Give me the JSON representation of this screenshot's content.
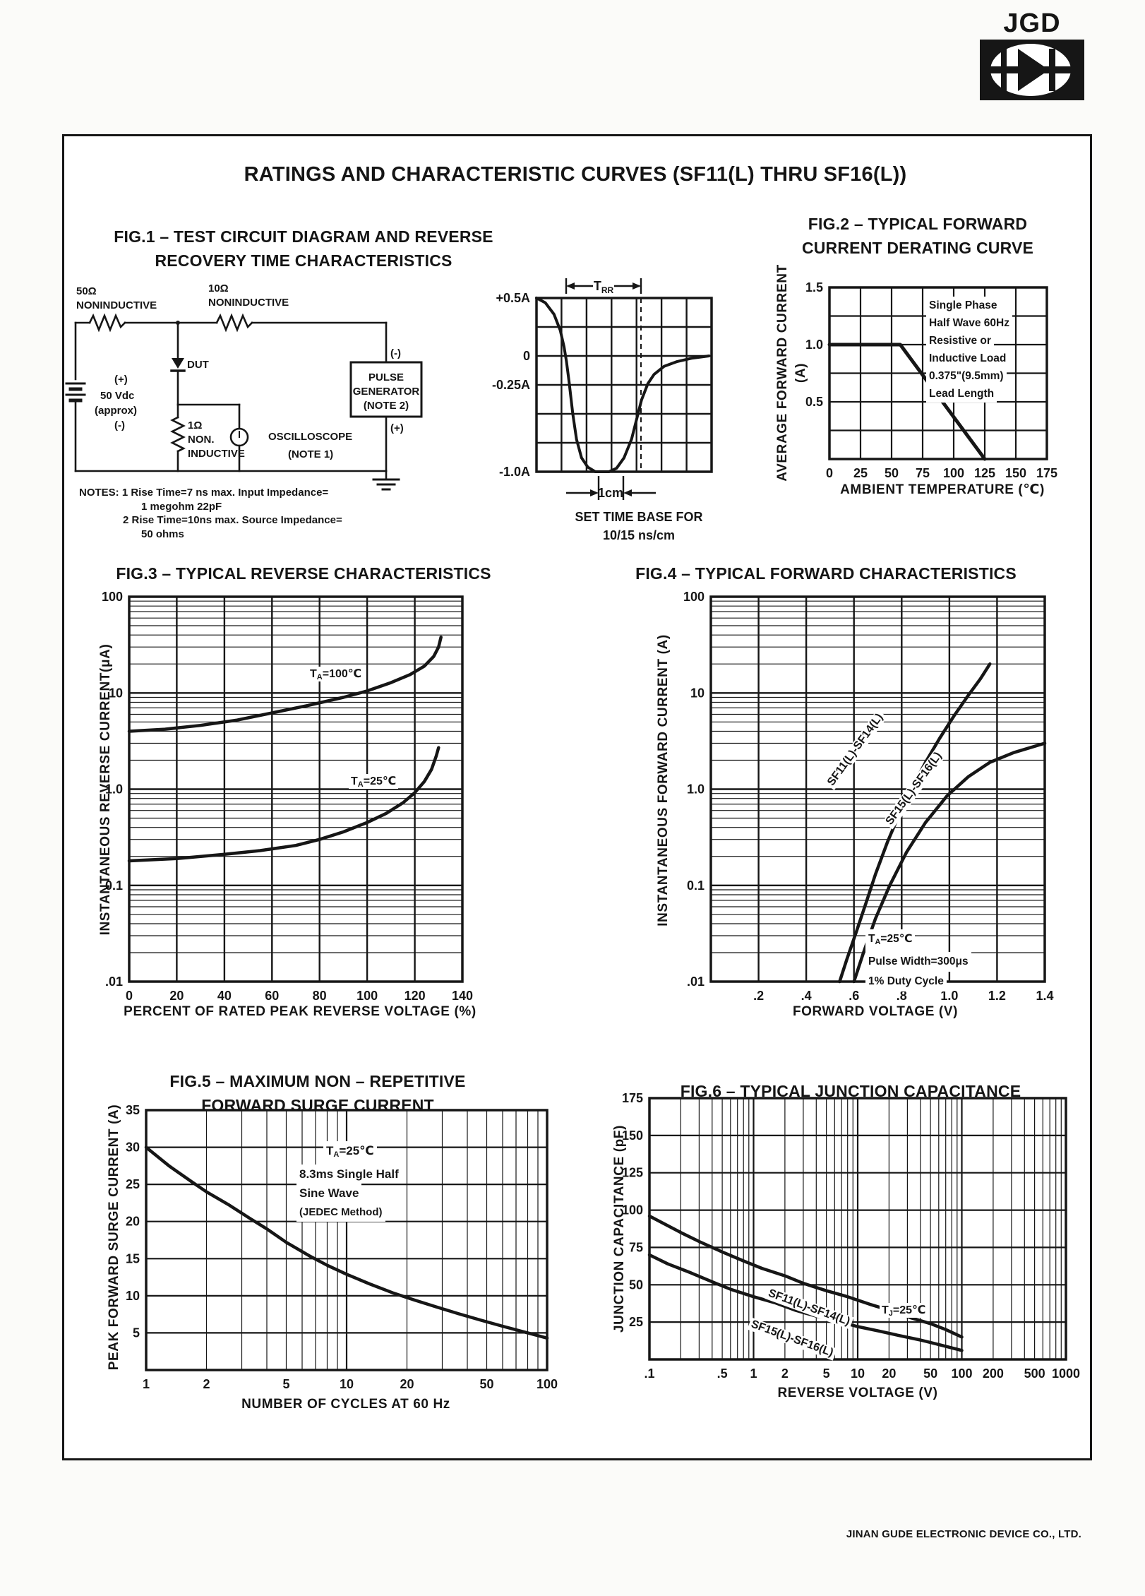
{
  "logo_text": "JGD",
  "page_title": "RATINGS AND CHARACTERISTIC CURVES (SF11(L) THRU SF16(L))",
  "footer_text": "JINAN GUDE ELECTRONIC DEVICE CO., LTD.",
  "fig1": {
    "title_line1": "FIG.1 – TEST CIRCUIT DIAGRAM AND REVERSE",
    "title_line2": "RECOVERY TIME CHARACTERISTICS",
    "circuit": {
      "r1_value": "50Ω",
      "r1_type": "NONINDUCTIVE",
      "r2_value": "10Ω",
      "r2_type": "NONINDUCTIVE",
      "dut_label": "DUT",
      "battery_plus": "(+)",
      "battery_voltage": "50 Vdc",
      "battery_approx": "(approx)",
      "battery_minus": "(-)",
      "r3_value": "1Ω",
      "r3_line1": "NON.",
      "r3_line2": "INDUCTIVE",
      "scope_label": "OSCILLOSCOPE",
      "scope_note": "(NOTE 1)",
      "pulse_line1": "PULSE",
      "pulse_line2": "GENERATOR",
      "pulse_line3": "(NOTE 2)",
      "pg_minus": "(-)",
      "pg_plus": "(+)"
    },
    "notes": {
      "line1": "NOTES: 1 Rise Time=7 ns max. Input Impedance=",
      "line2": "1 megohm 22pF",
      "line3": "2 Rise Time=10ns max. Source Impedance=",
      "line4": "50 ohms"
    }
  },
  "fig2": {
    "title_line1": "FIG.2 – TYPICAL FORWARD",
    "title_line2": "CURRENT DERATING CURVE"
  },
  "fig3": {
    "title": "FIG.3 – TYPICAL REVERSE CHARACTERISTICS"
  },
  "fig4": {
    "title": "FIG.4 – TYPICAL FORWARD CHARACTERISTICS"
  },
  "fig5": {
    "title_line1": "FIG.5 – MAXIMUM NON – REPETITIVE",
    "title_line2": "FORWARD SURGE CURRENT"
  },
  "fig6": {
    "title": "FIG.6 – TYPICAL JUNCTION CAPACITANCE"
  },
  "chart_data": {
    "fig1_wave": {
      "type": "line",
      "xlim": [
        0,
        7
      ],
      "ylim": [
        -1,
        0.5
      ],
      "yticks": [
        "+0.5A",
        "0",
        "-0.25A",
        "-1.0A"
      ],
      "trr": {
        "pre": "T",
        "sub": "RR"
      },
      "cm_label": "1cm",
      "caption1": "SET TIME BASE FOR",
      "caption2": "10/15 ns/cm",
      "series": [
        {
          "name": "reverse-recovery-current",
          "points": [
            [
              0,
              0.5
            ],
            [
              0.35,
              0.46
            ],
            [
              0.7,
              0.36
            ],
            [
              0.95,
              0.22
            ],
            [
              1.1,
              0.08
            ],
            [
              1.2,
              -0.05
            ],
            [
              1.3,
              -0.22
            ],
            [
              1.45,
              -0.5
            ],
            [
              1.6,
              -0.72
            ],
            [
              1.8,
              -0.88
            ],
            [
              2.05,
              -0.96
            ],
            [
              2.35,
              -1.0
            ],
            [
              2.9,
              -1.0
            ],
            [
              3.2,
              -0.97
            ],
            [
              3.5,
              -0.88
            ],
            [
              3.8,
              -0.72
            ],
            [
              4.0,
              -0.55
            ],
            [
              4.2,
              -0.38
            ],
            [
              4.45,
              -0.24
            ],
            [
              4.7,
              -0.16
            ],
            [
              5.1,
              -0.09
            ],
            [
              5.6,
              -0.05
            ],
            [
              6.2,
              -0.02
            ],
            [
              6.9,
              0
            ]
          ]
        }
      ]
    },
    "fig2": {
      "type": "line",
      "xlabel": "AMBIENT TEMPERATURE (℃)",
      "ylabel1": "AVERAGE FORWARD CURRENT",
      "ylabel2": "(A)",
      "xlim": [
        0,
        175
      ],
      "ylim": [
        0,
        1.5
      ],
      "xticks": [
        "0",
        "25",
        "50",
        "75",
        "100",
        "125",
        "150",
        "175"
      ],
      "yticks": [
        "0.5",
        "1.0",
        "1.5"
      ],
      "annotation": [
        "Single Phase",
        "Half Wave 60Hz",
        "Resistive or",
        "Inductive Load",
        "0.375\"(9.5mm)",
        "Lead Length"
      ],
      "series": [
        {
          "name": "derating",
          "points": [
            [
              0,
              1
            ],
            [
              57,
              1
            ],
            [
              125,
              0
            ]
          ]
        }
      ]
    },
    "fig3": {
      "type": "line",
      "yscale": "log",
      "xlabel": "PERCENT OF RATED PEAK REVERSE VOLTAGE (%)",
      "ylabel": "INSTANTANEOUS REVERSE CURRENT(μA)",
      "xlim": [
        0,
        140
      ],
      "ylim": [
        0.01,
        100
      ],
      "xticks": [
        "0",
        "20",
        "40",
        "60",
        "80",
        "100",
        "120",
        "140"
      ],
      "yticks": [
        "100",
        "10",
        "1.0",
        "0.1",
        ".01"
      ],
      "label_ta100": {
        "pre": "T",
        "sub": "A",
        "post": "=100℃"
      },
      "label_ta25": {
        "pre": "T",
        "sub": "A",
        "post": "=25℃"
      },
      "series": [
        {
          "name": "TA=100C",
          "points": [
            [
              0,
              4.0
            ],
            [
              15,
              4.2
            ],
            [
              30,
              4.6
            ],
            [
              45,
              5.2
            ],
            [
              60,
              6.2
            ],
            [
              75,
              7.4
            ],
            [
              90,
              9.0
            ],
            [
              100,
              10.5
            ],
            [
              110,
              12.8
            ],
            [
              118,
              15.5
            ],
            [
              124,
              19
            ],
            [
              128,
              24
            ],
            [
              130,
              30
            ],
            [
              131,
              38
            ]
          ]
        },
        {
          "name": "TA=25C",
          "points": [
            [
              0,
              0.18
            ],
            [
              20,
              0.19
            ],
            [
              40,
              0.21
            ],
            [
              55,
              0.23
            ],
            [
              70,
              0.26
            ],
            [
              80,
              0.3
            ],
            [
              90,
              0.36
            ],
            [
              100,
              0.45
            ],
            [
              108,
              0.56
            ],
            [
              115,
              0.72
            ],
            [
              120,
              0.92
            ],
            [
              124,
              1.2
            ],
            [
              127,
              1.6
            ],
            [
              129,
              2.2
            ],
            [
              130,
              2.7
            ]
          ]
        }
      ]
    },
    "fig4": {
      "type": "line",
      "yscale": "log",
      "xlabel": "FORWARD VOLTAGE (V)",
      "ylabel": "INSTANTANEOUS FORWARD CURRENT (A)",
      "xlim": [
        0,
        1.4
      ],
      "ylim": [
        0.01,
        100
      ],
      "xticks": [
        ".2",
        ".4",
        ".6",
        ".8",
        "1.0",
        "1.2",
        "1.4"
      ],
      "yticks": [
        "100",
        "10",
        "1.0",
        "0.1",
        ".01"
      ],
      "annotation_ta": {
        "pre": "T",
        "sub": "A",
        "post": "=25℃"
      },
      "annotation_line2": "Pulse Width=300μs",
      "annotation_line3": "1% Duty Cycle",
      "series": [
        {
          "name": "SF11(L)-SF14(L)",
          "points": [
            [
              0.54,
              0.01
            ],
            [
              0.57,
              0.017
            ],
            [
              0.61,
              0.033
            ],
            [
              0.65,
              0.065
            ],
            [
              0.69,
              0.13
            ],
            [
              0.74,
              0.28
            ],
            [
              0.79,
              0.55
            ],
            [
              0.84,
              1.0
            ],
            [
              0.9,
              1.9
            ],
            [
              0.96,
              3.4
            ],
            [
              1.02,
              5.8
            ],
            [
              1.08,
              9.5
            ],
            [
              1.13,
              14
            ],
            [
              1.17,
              20
            ]
          ]
        },
        {
          "name": "SF15(L)-SF16(L)",
          "points": [
            [
              0.6,
              0.01
            ],
            [
              0.64,
              0.02
            ],
            [
              0.69,
              0.045
            ],
            [
              0.75,
              0.1
            ],
            [
              0.82,
              0.22
            ],
            [
              0.9,
              0.45
            ],
            [
              0.99,
              0.85
            ],
            [
              1.08,
              1.35
            ],
            [
              1.17,
              1.9
            ],
            [
              1.27,
              2.4
            ],
            [
              1.4,
              3.0
            ]
          ]
        }
      ]
    },
    "fig5": {
      "type": "line",
      "xscale": "log",
      "xlabel": "NUMBER OF CYCLES AT 60 Hz",
      "ylabel": "PEAK FORWARD SURGE CURRENT (A)",
      "xlim": [
        1,
        100
      ],
      "ylim": [
        0,
        35
      ],
      "xticks": [
        "1",
        "2",
        "5",
        "10",
        "20",
        "50",
        "100"
      ],
      "yticks": [
        "5",
        "10",
        "15",
        "20",
        "25",
        "30",
        "35"
      ],
      "annotation_ta": {
        "pre": "T",
        "sub": "A",
        "post": "=25℃"
      },
      "annotation_line2": "8.3ms Single Half",
      "annotation_line3": "Sine Wave",
      "annotation_line4": "(JEDEC Method)",
      "series": [
        {
          "name": "surge-current",
          "points": [
            [
              1,
              30
            ],
            [
              1.3,
              27.5
            ],
            [
              1.7,
              25.3
            ],
            [
              2,
              24
            ],
            [
              2.6,
              22.2
            ],
            [
              3.3,
              20.4
            ],
            [
              4,
              19
            ],
            [
              5,
              17.2
            ],
            [
              6.5,
              15.4
            ],
            [
              8,
              14.1
            ],
            [
              10,
              12.9
            ],
            [
              13,
              11.6
            ],
            [
              17,
              10.4
            ],
            [
              22,
              9.4
            ],
            [
              28,
              8.5
            ],
            [
              36,
              7.6
            ],
            [
              47,
              6.7
            ],
            [
              60,
              5.9
            ],
            [
              80,
              5.0
            ],
            [
              100,
              4.3
            ]
          ]
        }
      ]
    },
    "fig6": {
      "type": "line",
      "xscale": "log",
      "xlabel": "REVERSE VOLTAGE (V)",
      "ylabel": "JUNCTION CAPACITANCE (pF)",
      "xlim": [
        0.1,
        1000
      ],
      "ylim": [
        0,
        175
      ],
      "xticks": [
        ".1",
        ".5",
        "1",
        "2",
        "5",
        "10",
        "20",
        "50",
        "100",
        "200",
        "500",
        "1000"
      ],
      "yticks": [
        "25",
        "50",
        "75",
        "100",
        "125",
        "150",
        "175"
      ],
      "label_tj": {
        "pre": "T",
        "sub": "J",
        "post": "=25℃"
      },
      "series": [
        {
          "name": "SF11(L)-SF14(L)",
          "points": [
            [
              0.1,
              96
            ],
            [
              0.2,
              85
            ],
            [
              0.3,
              79
            ],
            [
              0.5,
              72
            ],
            [
              0.8,
              66
            ],
            [
              1.2,
              61
            ],
            [
              2,
              56
            ],
            [
              3,
              51
            ],
            [
              5,
              46
            ],
            [
              8,
              42
            ],
            [
              13,
              37
            ],
            [
              20,
              33
            ],
            [
              32,
              28
            ],
            [
              50,
              24
            ],
            [
              70,
              20
            ],
            [
              100,
              15
            ]
          ]
        },
        {
          "name": "SF15(L)-SF16(L)",
          "points": [
            [
              0.1,
              70
            ],
            [
              0.15,
              64
            ],
            [
              0.25,
              58
            ],
            [
              0.4,
              52
            ],
            [
              0.6,
              47
            ],
            [
              1,
              42
            ],
            [
              1.6,
              38
            ],
            [
              2.5,
              33
            ],
            [
              4,
              29
            ],
            [
              6,
              26
            ],
            [
              10,
              22
            ],
            [
              16,
              19
            ],
            [
              25,
              16
            ],
            [
              40,
              13
            ],
            [
              60,
              10
            ],
            [
              100,
              6
            ]
          ]
        }
      ]
    }
  }
}
